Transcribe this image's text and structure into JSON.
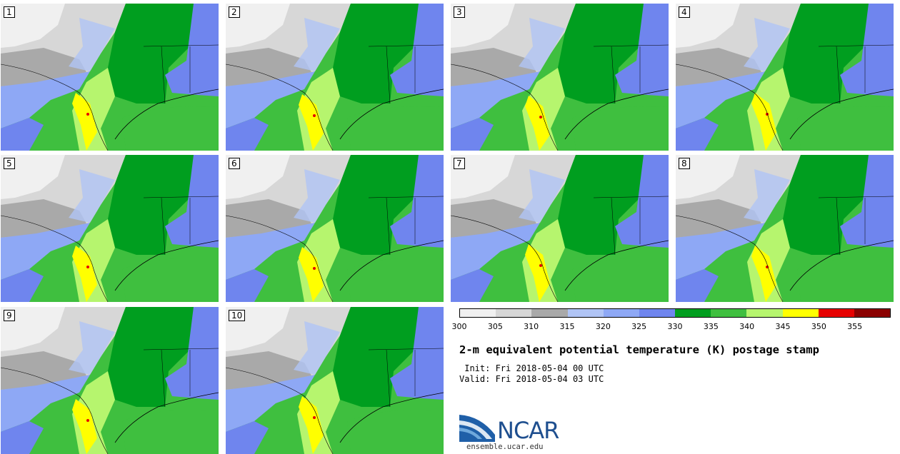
{
  "panels": [
    {
      "label": "1"
    },
    {
      "label": "2"
    },
    {
      "label": "3"
    },
    {
      "label": "4"
    },
    {
      "label": "5"
    },
    {
      "label": "6"
    },
    {
      "label": "7"
    },
    {
      "label": "8"
    },
    {
      "label": "9"
    },
    {
      "label": "10"
    }
  ],
  "colorbar": {
    "bins": [
      {
        "low": 300,
        "high": 305,
        "color": "#f0f0f0"
      },
      {
        "low": 305,
        "high": 310,
        "color": "#d7d7d7"
      },
      {
        "low": 310,
        "high": 315,
        "color": "#a9a9a9"
      },
      {
        "low": 315,
        "high": 320,
        "color": "#b0c4f5"
      },
      {
        "low": 320,
        "high": 325,
        "color": "#8ea8f5"
      },
      {
        "low": 325,
        "high": 330,
        "color": "#6f85ee"
      },
      {
        "low": 330,
        "high": 335,
        "color": "#009e1f"
      },
      {
        "low": 335,
        "high": 340,
        "color": "#3fbf3f"
      },
      {
        "low": 340,
        "high": 345,
        "color": "#b6f56e"
      },
      {
        "low": 345,
        "high": 350,
        "color": "#ffff00"
      },
      {
        "low": 350,
        "high": 355,
        "color": "#e60000"
      },
      {
        "low": 355,
        "high": 360,
        "color": "#8b0000"
      }
    ],
    "tick_labels": [
      "300",
      "305",
      "310",
      "315",
      "320",
      "325",
      "330",
      "335",
      "340",
      "345",
      "350",
      "355"
    ]
  },
  "title": "2-m equivalent potential temperature (K) postage stamp",
  "init": " Init: Fri 2018-05-04 00 UTC",
  "valid": "Valid: Fri 2018-05-04 03 UTC",
  "logo": {
    "text": "NCAR",
    "url": "ensemble.ucar.edu"
  }
}
